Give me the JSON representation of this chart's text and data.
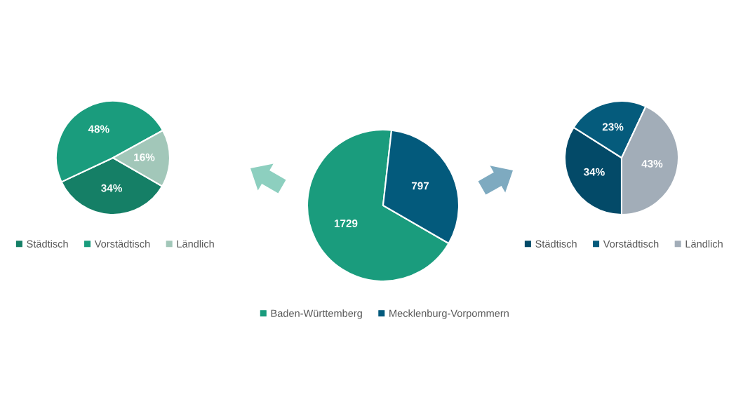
{
  "chart_data": [
    {
      "type": "pie",
      "categories": [
        "Städtisch",
        "Vorstädtisch",
        "Ländlich"
      ],
      "values": [
        34,
        48,
        16
      ],
      "colors": [
        "#157f66",
        "#1a9c7d",
        "#a2c7b9"
      ],
      "value_labels": [
        "34%",
        "48%",
        "16%"
      ],
      "legend": "bottom"
    },
    {
      "type": "pie",
      "categories": [
        "Baden-Württemberg",
        "Mecklenburg-Vorpommern"
      ],
      "values": [
        1729,
        797
      ],
      "colors": [
        "#1a9c7d",
        "#035a7c"
      ],
      "data_labels": true,
      "legend": "bottom"
    },
    {
      "type": "pie",
      "categories": [
        "Städtisch",
        "Vorstädtisch",
        "Ländlich"
      ],
      "values": [
        34,
        23,
        43
      ],
      "colors": [
        "#034a68",
        "#055b7c",
        "#a2adb8"
      ],
      "value_labels": [
        "34%",
        "23%",
        "43%"
      ],
      "legend": "bottom"
    }
  ]
}
